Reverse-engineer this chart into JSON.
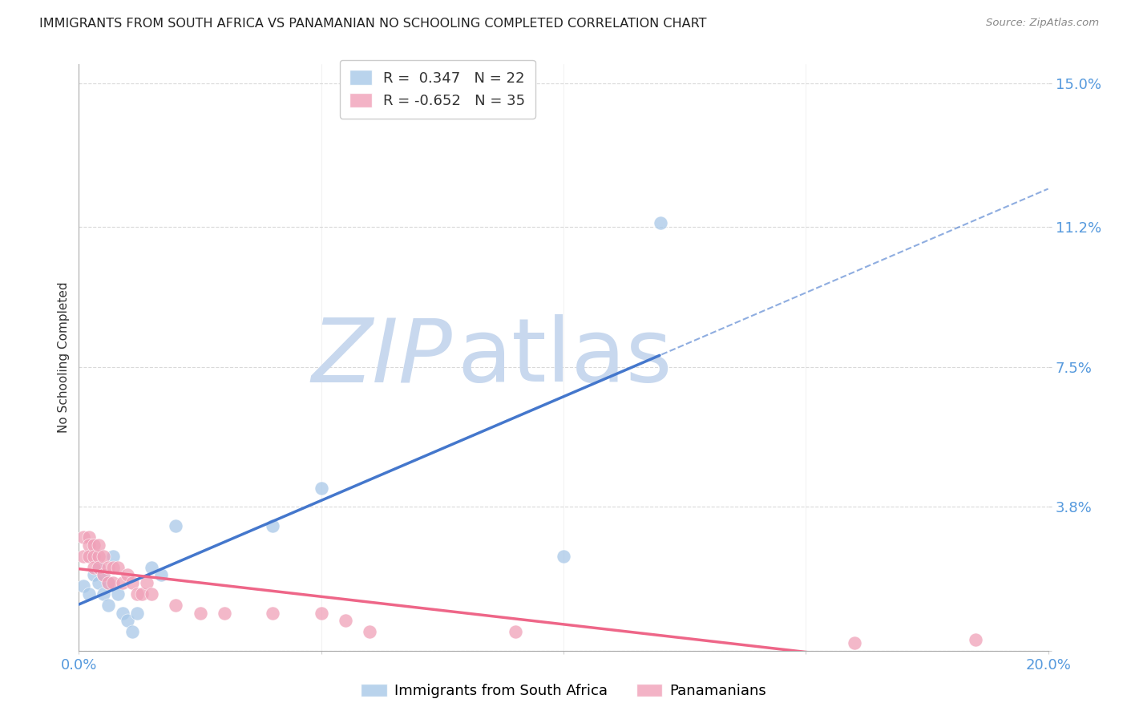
{
  "title": "IMMIGRANTS FROM SOUTH AFRICA VS PANAMANIAN NO SCHOOLING COMPLETED CORRELATION CHART",
  "source": "Source: ZipAtlas.com",
  "ylabel": "No Schooling Completed",
  "xlim": [
    0.0,
    0.2
  ],
  "ylim": [
    0.0,
    0.155
  ],
  "bg_color": "#ffffff",
  "grid_color": "#d0d0d0",
  "blue_color": "#a8c8e8",
  "pink_color": "#f0a0b8",
  "blue_line_color": "#4477cc",
  "pink_line_color": "#ee6688",
  "blue_R": 0.347,
  "blue_N": 22,
  "pink_R": -0.652,
  "pink_N": 35,
  "blue_points_x": [
    0.001,
    0.002,
    0.003,
    0.004,
    0.004,
    0.005,
    0.005,
    0.006,
    0.006,
    0.007,
    0.008,
    0.009,
    0.01,
    0.011,
    0.012,
    0.015,
    0.017,
    0.02,
    0.04,
    0.05,
    0.1,
    0.12
  ],
  "blue_points_y": [
    0.017,
    0.015,
    0.02,
    0.022,
    0.018,
    0.015,
    0.02,
    0.012,
    0.018,
    0.025,
    0.015,
    0.01,
    0.008,
    0.005,
    0.01,
    0.022,
    0.02,
    0.033,
    0.033,
    0.043,
    0.025,
    0.113
  ],
  "pink_points_x": [
    0.001,
    0.001,
    0.002,
    0.002,
    0.002,
    0.003,
    0.003,
    0.003,
    0.004,
    0.004,
    0.004,
    0.005,
    0.005,
    0.006,
    0.006,
    0.007,
    0.007,
    0.008,
    0.009,
    0.01,
    0.011,
    0.012,
    0.013,
    0.014,
    0.015,
    0.02,
    0.025,
    0.03,
    0.04,
    0.05,
    0.055,
    0.06,
    0.09,
    0.16,
    0.185
  ],
  "pink_points_y": [
    0.03,
    0.025,
    0.03,
    0.028,
    0.025,
    0.028,
    0.025,
    0.022,
    0.025,
    0.022,
    0.028,
    0.02,
    0.025,
    0.022,
    0.018,
    0.022,
    0.018,
    0.022,
    0.018,
    0.02,
    0.018,
    0.015,
    0.015,
    0.018,
    0.015,
    0.012,
    0.01,
    0.01,
    0.01,
    0.01,
    0.008,
    0.005,
    0.005,
    0.002,
    0.003
  ],
  "ytick_positions": [
    0.0,
    0.038,
    0.075,
    0.112,
    0.15
  ],
  "ytick_labels": [
    "",
    "3.8%",
    "7.5%",
    "11.2%",
    "15.0%"
  ],
  "xtick_positions": [
    0.0,
    0.05,
    0.1,
    0.15,
    0.2
  ],
  "xtick_labels": [
    "0.0%",
    "",
    "",
    "",
    "20.0%"
  ],
  "watermark_zip": "ZIP",
  "watermark_atlas": "atlas",
  "watermark_color_zip": "#c8d8ee",
  "watermark_color_atlas": "#c8d8ee",
  "legend_label_blue": "R =  0.347   N = 22",
  "legend_label_pink": "R = -0.652   N = 35",
  "bottom_label_blue": "Immigrants from South Africa",
  "bottom_label_pink": "Panamanians"
}
